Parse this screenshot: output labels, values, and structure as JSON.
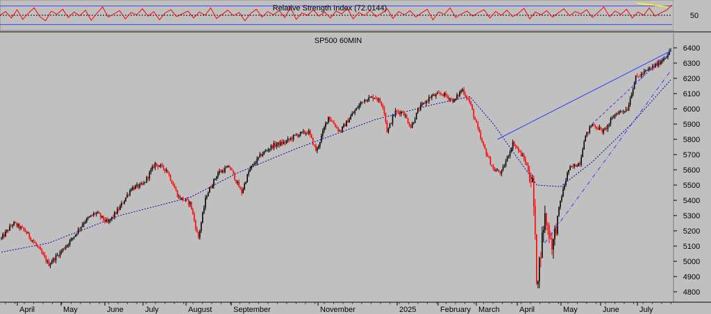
{
  "chart_data": [
    {
      "type": "line",
      "title": "Relative Strength Index (72.0144)",
      "yticks": [
        50
      ],
      "ylim": [
        20,
        80
      ],
      "reference_lines": [
        70,
        50,
        30
      ],
      "series": [
        {
          "name": "",
          "values": [
            50,
            58,
            44,
            62,
            41,
            55,
            66,
            47,
            38,
            59,
            52,
            63,
            45,
            57,
            49,
            61,
            39,
            54,
            68,
            46,
            53,
            60,
            42,
            56,
            51,
            64,
            48,
            58,
            40,
            55,
            62,
            47,
            53,
            59,
            44,
            57,
            50,
            66,
            43,
            52,
            61,
            49,
            56,
            38,
            54,
            63,
            46,
            58,
            51,
            60,
            45,
            67,
            41,
            55,
            50,
            62,
            48,
            57,
            44,
            59,
            53,
            65,
            42,
            56,
            49,
            61,
            47,
            54,
            64,
            43,
            58,
            51,
            60,
            46,
            55,
            63,
            40,
            57,
            52,
            66,
            45,
            53,
            59,
            48,
            56,
            62,
            44,
            58,
            50,
            61,
            47,
            54,
            65,
            42,
            57,
            51,
            60,
            46,
            55,
            64,
            49,
            58,
            53,
            62,
            45,
            56,
            68,
            47,
            59,
            52,
            63,
            44,
            57,
            50,
            66,
            48,
            55,
            61,
            72
          ]
        }
      ],
      "trendline": "yellow",
      "colors": {
        "line": "#ff0000",
        "reference": "#4040ff",
        "trendline": "#ffff00"
      }
    },
    {
      "type": "candlestick",
      "title": "SP500 60MIN",
      "ylim": [
        4750,
        6450
      ],
      "yticks": [
        4800,
        4900,
        5000,
        5100,
        5200,
        5300,
        5400,
        5500,
        5600,
        5700,
        5800,
        5900,
        6000,
        6100,
        6200,
        6300,
        6400
      ],
      "xticks": [
        "April",
        "May",
        "June",
        "July",
        "August",
        "September",
        "November",
        "2025",
        "February",
        "March",
        "April",
        "May",
        "June",
        "July"
      ],
      "path": [
        [
          0,
          5150
        ],
        [
          3,
          5250
        ],
        [
          6,
          5200
        ],
        [
          9,
          5100
        ],
        [
          12,
          4980
        ],
        [
          15,
          5060
        ],
        [
          18,
          5150
        ],
        [
          21,
          5260
        ],
        [
          24,
          5320
        ],
        [
          27,
          5250
        ],
        [
          30,
          5350
        ],
        [
          33,
          5480
        ],
        [
          36,
          5500
        ],
        [
          39,
          5640
        ],
        [
          42,
          5600
        ],
        [
          45,
          5420
        ],
        [
          48,
          5380
        ],
        [
          50,
          5150
        ],
        [
          52,
          5430
        ],
        [
          55,
          5580
        ],
        [
          58,
          5620
        ],
        [
          61,
          5450
        ],
        [
          63,
          5600
        ],
        [
          66,
          5700
        ],
        [
          69,
          5760
        ],
        [
          72,
          5780
        ],
        [
          75,
          5830
        ],
        [
          78,
          5850
        ],
        [
          80,
          5720
        ],
        [
          83,
          5950
        ],
        [
          86,
          5850
        ],
        [
          89,
          5960
        ],
        [
          92,
          6060
        ],
        [
          95,
          6080
        ],
        [
          97,
          6020
        ],
        [
          98,
          5850
        ],
        [
          100,
          5980
        ],
        [
          102,
          5980
        ],
        [
          104,
          5880
        ],
        [
          106,
          6000
        ],
        [
          109,
          6080
        ],
        [
          112,
          6100
        ],
        [
          115,
          6050
        ],
        [
          117,
          6130
        ],
        [
          119,
          6040
        ],
        [
          122,
          5780
        ],
        [
          125,
          5600
        ],
        [
          127,
          5580
        ],
        [
          130,
          5780
        ],
        [
          133,
          5660
        ],
        [
          135,
          5500
        ],
        [
          136,
          4850
        ],
        [
          138,
          5300
        ],
        [
          140,
          5100
        ],
        [
          142,
          5400
        ],
        [
          144,
          5600
        ],
        [
          147,
          5650
        ],
        [
          148,
          5800
        ],
        [
          150,
          5900
        ],
        [
          153,
          5850
        ],
        [
          156,
          5970
        ],
        [
          159,
          6000
        ],
        [
          161,
          6200
        ],
        [
          164,
          6250
        ],
        [
          167,
          6300
        ],
        [
          170,
          6380
        ]
      ],
      "moving_average": [
        [
          0,
          5060
        ],
        [
          12,
          5120
        ],
        [
          30,
          5300
        ],
        [
          48,
          5420
        ],
        [
          60,
          5580
        ],
        [
          75,
          5740
        ],
        [
          95,
          5930
        ],
        [
          110,
          6030
        ],
        [
          119,
          6080
        ],
        [
          125,
          5900
        ],
        [
          131,
          5680
        ],
        [
          136,
          5500
        ],
        [
          142,
          5490
        ],
        [
          150,
          5650
        ],
        [
          160,
          5900
        ],
        [
          170,
          6190
        ]
      ],
      "channel_upper": [
        [
          126,
          5800
        ],
        [
          170,
          6380
        ]
      ],
      "channel_lower": [
        [
          138,
          5120
        ],
        [
          170,
          6250
        ]
      ],
      "colors": {
        "up": "#000000",
        "down": "#ff0000",
        "ma": "#0000aa",
        "trend": "#2a3cff"
      }
    }
  ]
}
